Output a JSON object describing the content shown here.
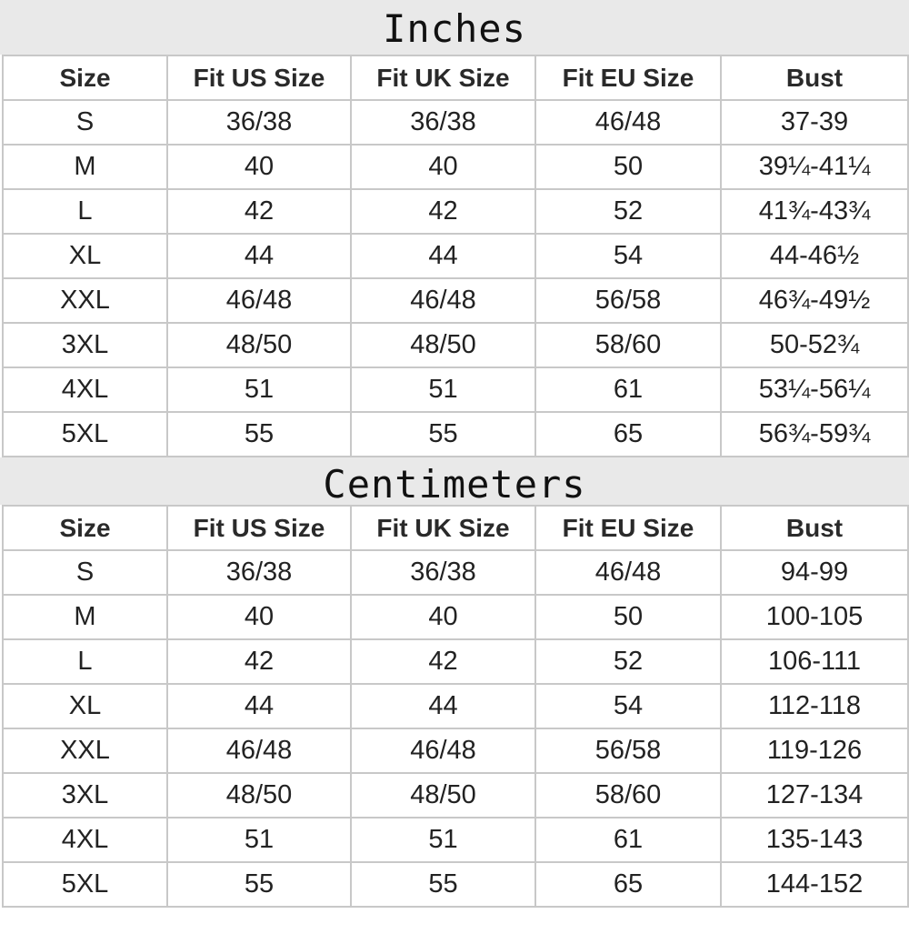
{
  "sections": [
    {
      "title": "Inches",
      "headers": [
        "Size",
        "Fit US Size",
        "Fit UK Size",
        "Fit EU Size",
        "Bust"
      ],
      "rows": [
        [
          "S",
          "36/38",
          "36/38",
          "46/48",
          "37-39"
        ],
        [
          "M",
          "40",
          "40",
          "50",
          "39¼-41¼"
        ],
        [
          "L",
          "42",
          "42",
          "52",
          "41¾-43¾"
        ],
        [
          "XL",
          "44",
          "44",
          "54",
          "44-46½"
        ],
        [
          "XXL",
          "46/48",
          "46/48",
          "56/58",
          "46¾-49½"
        ],
        [
          "3XL",
          "48/50",
          "48/50",
          "58/60",
          "50-52¾"
        ],
        [
          "4XL",
          "51",
          "51",
          "61",
          "53¼-56¼"
        ],
        [
          "5XL",
          "55",
          "55",
          "65",
          "56¾-59¾"
        ]
      ]
    },
    {
      "title": "Centimeters",
      "headers": [
        "Size",
        "Fit US Size",
        "Fit UK Size",
        "Fit EU Size",
        "Bust"
      ],
      "rows": [
        [
          "S",
          "36/38",
          "36/38",
          "46/48",
          "94-99"
        ],
        [
          "M",
          "40",
          "40",
          "50",
          "100-105"
        ],
        [
          "L",
          "42",
          "42",
          "52",
          "106-111"
        ],
        [
          "XL",
          "44",
          "44",
          "54",
          "112-118"
        ],
        [
          "XXL",
          "46/48",
          "46/48",
          "56/58",
          "119-126"
        ],
        [
          "3XL",
          "48/50",
          "48/50",
          "58/60",
          "127-134"
        ],
        [
          "4XL",
          "51",
          "51",
          "61",
          "135-143"
        ],
        [
          "5XL",
          "55",
          "55",
          "65",
          "144-152"
        ]
      ]
    }
  ]
}
